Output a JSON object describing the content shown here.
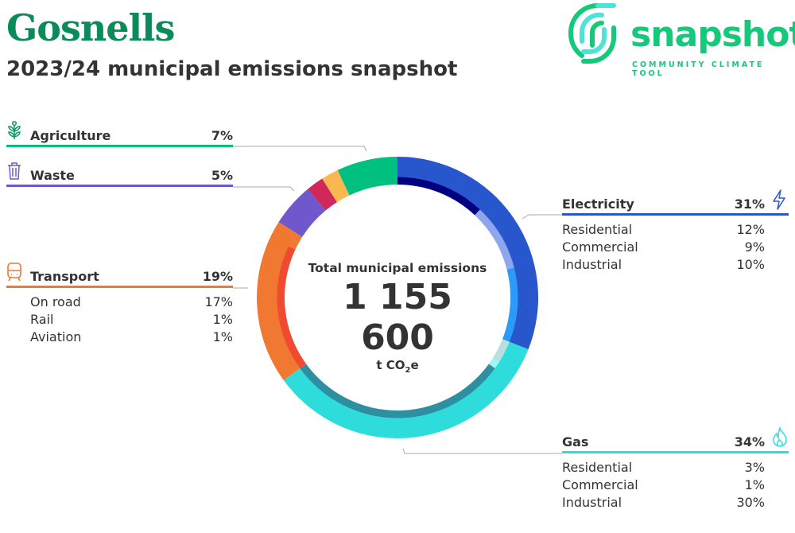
{
  "header": {
    "title": "Gosnells",
    "subtitle": "2023/24 municipal emissions snapshot"
  },
  "logo": {
    "name": "snapshot",
    "tagline": "COMMUNITY CLIMATE TOOL"
  },
  "chart_data": {
    "type": "pie",
    "center": {
      "label": "Total municipal emissions",
      "value": "1 155 600",
      "unit_prefix": "t CO",
      "unit_sub": "2",
      "unit_suffix": "e"
    },
    "sectors": [
      {
        "name": "Electricity",
        "value": 31,
        "label": "31%",
        "color": "#2856cc",
        "icon": "lightning-icon",
        "subsectors": [
          {
            "name": "Residential",
            "value": 12,
            "label": "12%",
            "color": "#000080"
          },
          {
            "name": "Commercial",
            "value": 9,
            "label": "9%",
            "color": "#8ea6ee"
          },
          {
            "name": "Industrial",
            "value": 10,
            "label": "10%",
            "color": "#2b9af8"
          }
        ]
      },
      {
        "name": "Gas",
        "value": 34,
        "label": "34%",
        "color": "#2fdcdc",
        "icon": "flame-icon",
        "subsectors": [
          {
            "name": "Residential",
            "value": 3,
            "label": "3%",
            "color": "#b9e0e0"
          },
          {
            "name": "Commercial",
            "value": 1,
            "label": "1%",
            "color": "#9ff4f8"
          },
          {
            "name": "Industrial",
            "value": 30,
            "label": "30%",
            "color": "#2e8fa0"
          }
        ]
      },
      {
        "name": "Transport",
        "value": 19,
        "label": "19%",
        "color": "#f07830",
        "icon": "train-icon",
        "subsectors": [
          {
            "name": "On road",
            "value": 17,
            "label": "17%",
            "color": "#f04a30"
          },
          {
            "name": "Rail",
            "value": 1,
            "label": "1%",
            "color": "#f07830"
          },
          {
            "name": "Aviation",
            "value": 1,
            "label": "1%",
            "color": "#f07830"
          }
        ]
      },
      {
        "name": "Waste",
        "value": 5,
        "label": "5%",
        "color": "#7058cc",
        "icon": "trash-icon",
        "subsectors": []
      },
      {
        "name": "",
        "value": 2,
        "label": "",
        "color": "#d02858",
        "subsectors": []
      },
      {
        "name": "",
        "value": 2,
        "label": "",
        "color": "#fcb850",
        "subsectors": []
      },
      {
        "name": "Agriculture",
        "value": 7,
        "label": "7%",
        "color": "#00c080",
        "icon": "plant-icon",
        "subsectors": []
      }
    ]
  }
}
